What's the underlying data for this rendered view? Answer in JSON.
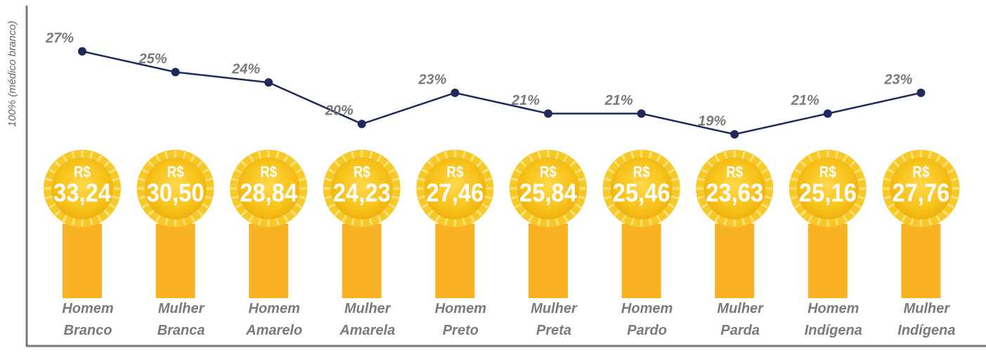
{
  "chart_data": {
    "type": "line",
    "y_label": "100% (médico branco)",
    "categories": [
      "Homem Branco",
      "Mulher Branca",
      "Homem Amarelo",
      "Mulher Amarela",
      "Homem Preto",
      "Mulher Preta",
      "Homem Pardo",
      "Mulher Parda",
      "Homem Indígena",
      "Mulher Indígena"
    ],
    "values": [
      27,
      25,
      24,
      20,
      23,
      21,
      21,
      19,
      21,
      23
    ],
    "value_labels": [
      "27%",
      "25%",
      "24%",
      "20%",
      "23%",
      "21%",
      "21%",
      "19%",
      "21%",
      "23%"
    ],
    "color": "#1f2a5a",
    "medals": {
      "currency": "R$",
      "values": [
        33.24,
        30.5,
        28.84,
        24.23,
        27.46,
        25.84,
        25.46,
        23.63,
        25.16,
        27.76
      ],
      "value_labels": [
        "33,24",
        "30,50",
        "28,84",
        "24,23",
        "27,46",
        "25,84",
        "25,46",
        "23,63",
        "25,16",
        "27,76"
      ]
    }
  }
}
